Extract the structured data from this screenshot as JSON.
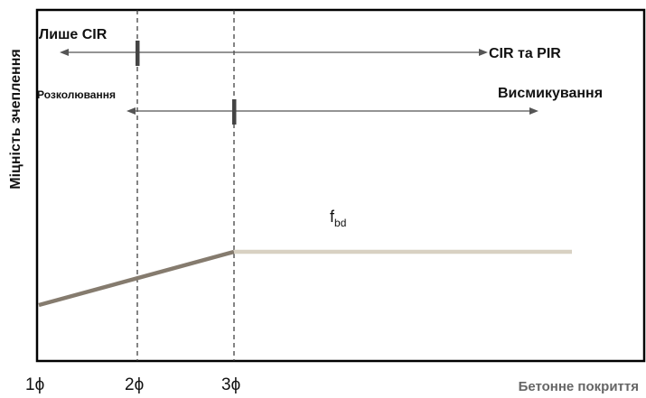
{
  "y_axis_label": "Міцність зчеплення",
  "x_axis_label": "Бетонне покриття",
  "x_ticks": [
    {
      "base": "1",
      "symbol": "ϕ"
    },
    {
      "base": "2",
      "symbol": "ϕ"
    },
    {
      "base": "3",
      "symbol": "ϕ"
    }
  ],
  "regions": {
    "lishe_cir": "Лише CIR",
    "cir_pir": "CIR та PIR",
    "rozkoluvannia": "Розколювання",
    "vysmykuvannia": "Висмикування"
  },
  "curve_label": {
    "base": "f",
    "subscript": "bd"
  },
  "colors": {
    "frame": "#000000",
    "rising_line": "#857b6e",
    "plateau_line": "#d8d1c2",
    "arrow": "#555555",
    "marker": "#444444",
    "x_axis_label": "#666666"
  }
}
